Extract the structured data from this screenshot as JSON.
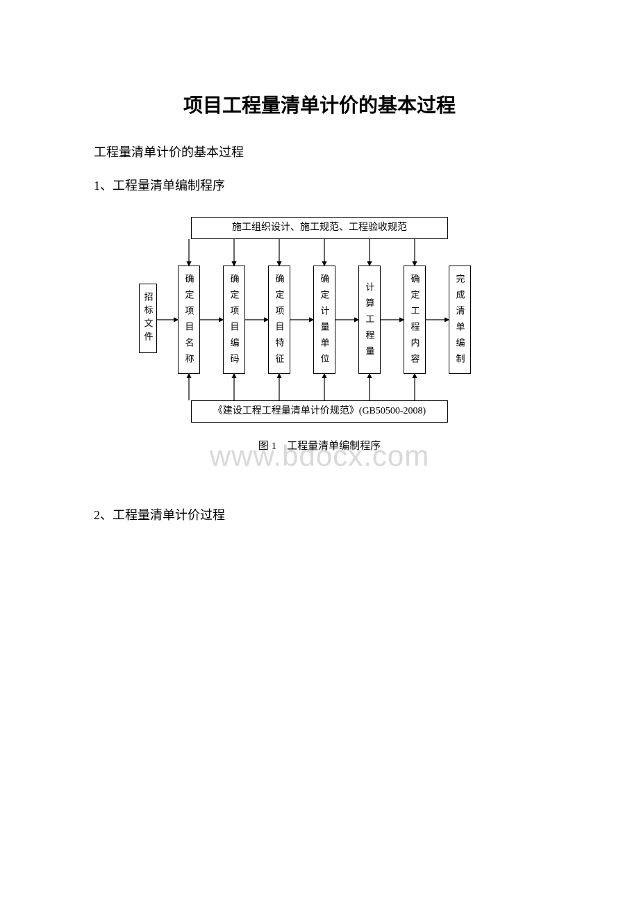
{
  "title": "项目工程量清单计价的基本过程",
  "para1": "工程量清单计价的基本过程",
  "para2": "1、工程量清单编制程序",
  "para3": "2、工程量清单计价过程",
  "watermark": "www.bdocx.com",
  "caption": "图 1　工程量清单编制程序",
  "topBox": "施工组织设计、施工规范、工程验收规范",
  "bottomBox": "《建设工程工程量清单计价规范》(GB50500-2008)",
  "leftBox": "招标文件",
  "boxes": [
    "确定项目名称",
    "确定项目编码",
    "确定项目特征",
    "确定计量单位",
    "计算工程量",
    "确定工程内容",
    "完成清单编制"
  ],
  "boxPositions": [
    56,
    121,
    186,
    251,
    316,
    381,
    446
  ],
  "boxWidth": 32,
  "lastBoxX": 446,
  "colors": {
    "text": "#000000",
    "border": "#000000",
    "bg": "#ffffff",
    "watermark": "#d9d9d9"
  },
  "arrows": {
    "stroke": "#000000",
    "strokeWidth": 1.2,
    "headSize": 4,
    "topY0": 32,
    "topY1": 70,
    "bottomY0": 264,
    "bottomY1": 226,
    "midY": 148,
    "leftArrowX0": 26,
    "leftArrowX1": 56,
    "midCount": 7
  }
}
